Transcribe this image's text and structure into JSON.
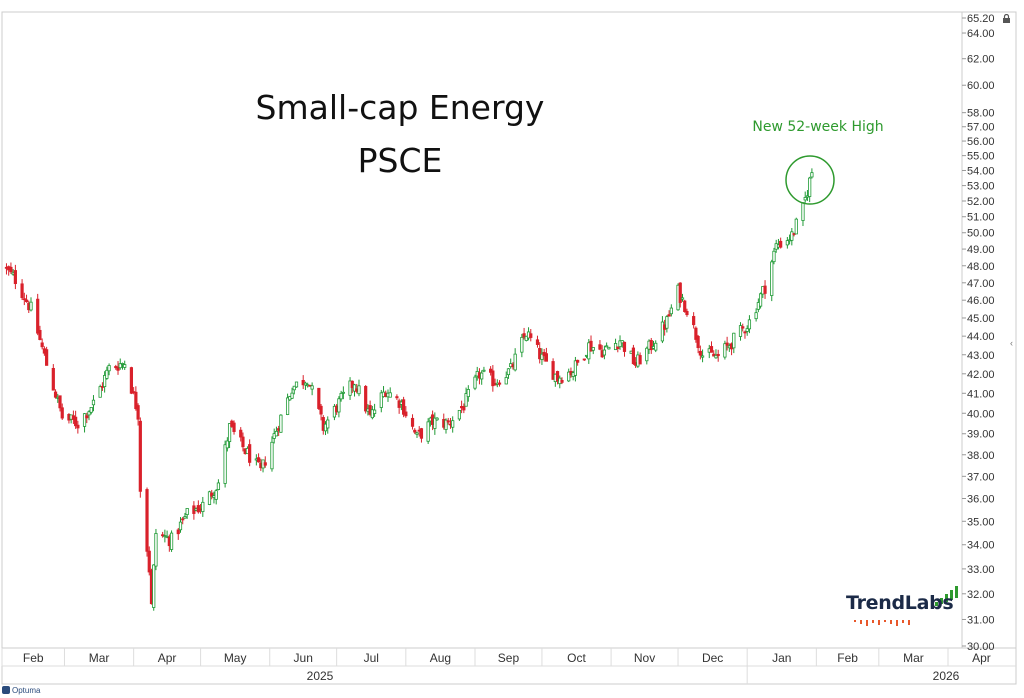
{
  "chart_data": {
    "type": "candlestick",
    "title": "Small-cap Energy",
    "subtitle": "PSCE",
    "annotation": "New 52-week High",
    "y_ticks": [
      "30.00",
      "31.00",
      "32.00",
      "33.00",
      "34.00",
      "35.00",
      "36.00",
      "37.00",
      "38.00",
      "39.00",
      "40.00",
      "41.00",
      "42.00",
      "43.00",
      "44.00",
      "45.00",
      "46.00",
      "47.00",
      "48.00",
      "49.00",
      "50.00",
      "51.00",
      "52.00",
      "53.00",
      "54.00",
      "55.00",
      "56.00",
      "57.00",
      "58.00",
      "60.00",
      "62.00",
      "64.00",
      "65.20"
    ],
    "y_scale": "log",
    "ylim": [
      30.0,
      65.2
    ],
    "x_months": [
      "Feb",
      "Mar",
      "Apr",
      "May",
      "Jun",
      "Jul",
      "Aug",
      "Sep",
      "Oct",
      "Nov",
      "Dec",
      "Jan",
      "Feb",
      "Mar",
      "Apr"
    ],
    "x_years": [
      "2025",
      "2026"
    ],
    "price_path": [
      [
        "2025-02-01",
        48.0
      ],
      [
        "2025-02-07",
        47.2
      ],
      [
        "2025-02-14",
        45.5
      ],
      [
        "2025-02-21",
        42.5
      ],
      [
        "2025-02-28",
        39.8
      ],
      [
        "2025-03-07",
        39.5
      ],
      [
        "2025-03-14",
        40.5
      ],
      [
        "2025-03-21",
        42.3
      ],
      [
        "2025-03-28",
        42.6
      ],
      [
        "2025-04-03",
        40.0
      ],
      [
        "2025-04-04",
        36.5
      ],
      [
        "2025-04-08",
        33.0
      ],
      [
        "2025-04-09",
        31.5
      ],
      [
        "2025-04-11",
        34.5
      ],
      [
        "2025-04-18",
        34.2
      ],
      [
        "2025-04-25",
        35.3
      ],
      [
        "2025-05-02",
        35.7
      ],
      [
        "2025-05-09",
        36.7
      ],
      [
        "2025-05-14",
        39.3
      ],
      [
        "2025-05-21",
        38.2
      ],
      [
        "2025-05-28",
        37.2
      ],
      [
        "2025-06-04",
        39.2
      ],
      [
        "2025-06-11",
        41.3
      ],
      [
        "2025-06-18",
        41.8
      ],
      [
        "2025-06-25",
        39.3
      ],
      [
        "2025-07-02",
        40.5
      ],
      [
        "2025-07-09",
        41.6
      ],
      [
        "2025-07-16",
        39.8
      ],
      [
        "2025-07-23",
        41.2
      ],
      [
        "2025-07-30",
        40.5
      ],
      [
        "2025-08-06",
        38.8
      ],
      [
        "2025-08-13",
        39.6
      ],
      [
        "2025-08-20",
        39.5
      ],
      [
        "2025-08-27",
        40.4
      ],
      [
        "2025-09-03",
        42.0
      ],
      [
        "2025-09-10",
        41.6
      ],
      [
        "2025-09-17",
        42.2
      ],
      [
        "2025-09-24",
        44.2
      ],
      [
        "2025-10-01",
        42.8
      ],
      [
        "2025-10-08",
        41.8
      ],
      [
        "2025-10-15",
        42.2
      ],
      [
        "2025-10-22",
        43.5
      ],
      [
        "2025-10-29",
        43.2
      ],
      [
        "2025-11-05",
        43.8
      ],
      [
        "2025-11-12",
        42.5
      ],
      [
        "2025-11-19",
        43.5
      ],
      [
        "2025-11-26",
        44.8
      ],
      [
        "2025-12-01",
        46.5
      ],
      [
        "2025-12-05",
        45.5
      ],
      [
        "2025-12-12",
        43.0
      ],
      [
        "2025-12-19",
        42.9
      ],
      [
        "2025-12-26",
        43.8
      ],
      [
        "2026-01-02",
        44.8
      ],
      [
        "2026-01-09",
        46.8
      ],
      [
        "2026-01-14",
        49.2
      ],
      [
        "2026-01-21",
        49.8
      ],
      [
        "2026-01-26",
        51.5
      ],
      [
        "2026-01-30",
        53.9
      ]
    ]
  },
  "logo": {
    "text": "TrendLabs",
    "bar_color": "#2e9a2e",
    "dash_color": "#e8572a"
  },
  "footer": {
    "brand": "Optuma"
  },
  "colors": {
    "up_candle": "#1f9a35",
    "down_candle": "#d9212b",
    "annotation": "#2e9a2e"
  }
}
